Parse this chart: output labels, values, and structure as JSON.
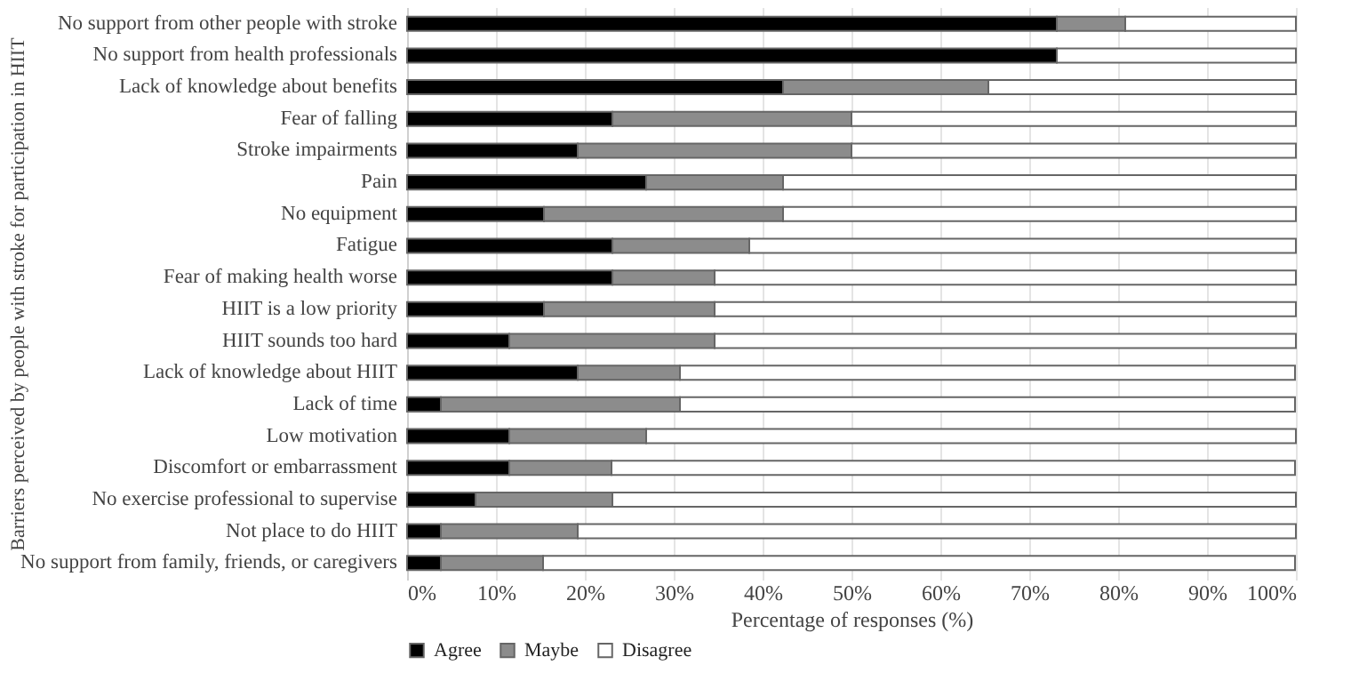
{
  "chart_data": {
    "type": "bar",
    "orientation": "horizontal",
    "stacked": true,
    "ylabel": "Barriers perceived by people with stroke for participation in HIIT",
    "xlabel": "Percentage of responses (%)",
    "categories": [
      "No support from other people with stroke",
      "No support from health professionals",
      "Lack of knowledge about benefits",
      "Fear of falling",
      "Stroke impairments",
      "Pain",
      "No equipment",
      "Fatigue",
      "Fear of making health worse",
      "HIIT is a low priority",
      "HIIT sounds too hard",
      "Lack of knowledge about HIIT",
      "Lack of time",
      "Low motivation",
      "Discomfort or embarrassment",
      "No exercise professional to supervise ",
      "Not place to do HIIT",
      "No support from family, friends, or caregivers"
    ],
    "series": [
      {
        "name": "Agree",
        "color": "#000000",
        "values": [
          73.1,
          73.1,
          42.3,
          23.1,
          19.2,
          26.9,
          15.4,
          23.1,
          23.1,
          15.4,
          11.5,
          19.2,
          3.8,
          11.5,
          11.5,
          7.7,
          3.8,
          3.8
        ]
      },
      {
        "name": "Maybe",
        "color": "#8c8c8c",
        "values": [
          7.7,
          0,
          23.1,
          26.9,
          30.8,
          15.4,
          26.9,
          15.4,
          11.5,
          19.2,
          23.1,
          11.5,
          26.9,
          15.4,
          11.5,
          15.4,
          15.4,
          11.5
        ]
      },
      {
        "name": "Disagree",
        "color": "#ffffff",
        "values": [
          19.2,
          26.9,
          34.6,
          50,
          50,
          57.7,
          57.7,
          61.5,
          65.4,
          65.4,
          65.4,
          69.2,
          69.2,
          73.1,
          76.9,
          76.9,
          80.8,
          84.6
        ]
      }
    ],
    "xlim": [
      0,
      100
    ],
    "xticks": [
      {
        "value": 0,
        "label": "0%"
      },
      {
        "value": 10,
        "label": "10%"
      },
      {
        "value": 20,
        "label": "20%"
      },
      {
        "value": 30,
        "label": "30%"
      },
      {
        "value": 40,
        "label": "40%"
      },
      {
        "value": 50,
        "label": "50%"
      },
      {
        "value": 60,
        "label": "60%"
      },
      {
        "value": 70,
        "label": "70%"
      },
      {
        "value": 80,
        "label": "80%"
      },
      {
        "value": 90,
        "label": "90%"
      },
      {
        "value": 100,
        "label": "100%"
      }
    ],
    "grid": "x",
    "legend": "bottom"
  }
}
